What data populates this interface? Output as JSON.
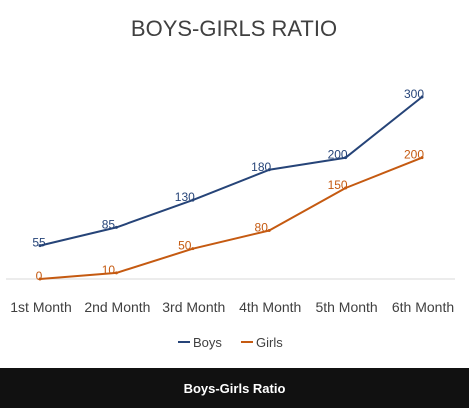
{
  "chart_data": {
    "type": "line",
    "title": "BOYS-GIRLS RATIO",
    "categories": [
      "1st Month",
      "2nd Month",
      "3rd Month",
      "4th Month",
      "5th Month",
      "6th Month"
    ],
    "series": [
      {
        "name": "Boys",
        "values": [
          55,
          85,
          130,
          180,
          200,
          300
        ],
        "color": "#264478"
      },
      {
        "name": "Girls",
        "values": [
          0,
          10,
          50,
          80,
          150,
          200
        ],
        "color": "#C55A11"
      }
    ],
    "ylim": [
      0,
      300
    ],
    "xlabel": "",
    "ylabel": "",
    "legend": {
      "position": "bottom",
      "items": [
        "Boys",
        "Girls"
      ]
    },
    "grid": false
  },
  "caption": {
    "text": "Boys-Girls Ratio"
  },
  "colors": {
    "axis": "#d9d9d9",
    "text": "#404040",
    "caption_bg": "#111111",
    "caption_text": "#ffffff"
  }
}
